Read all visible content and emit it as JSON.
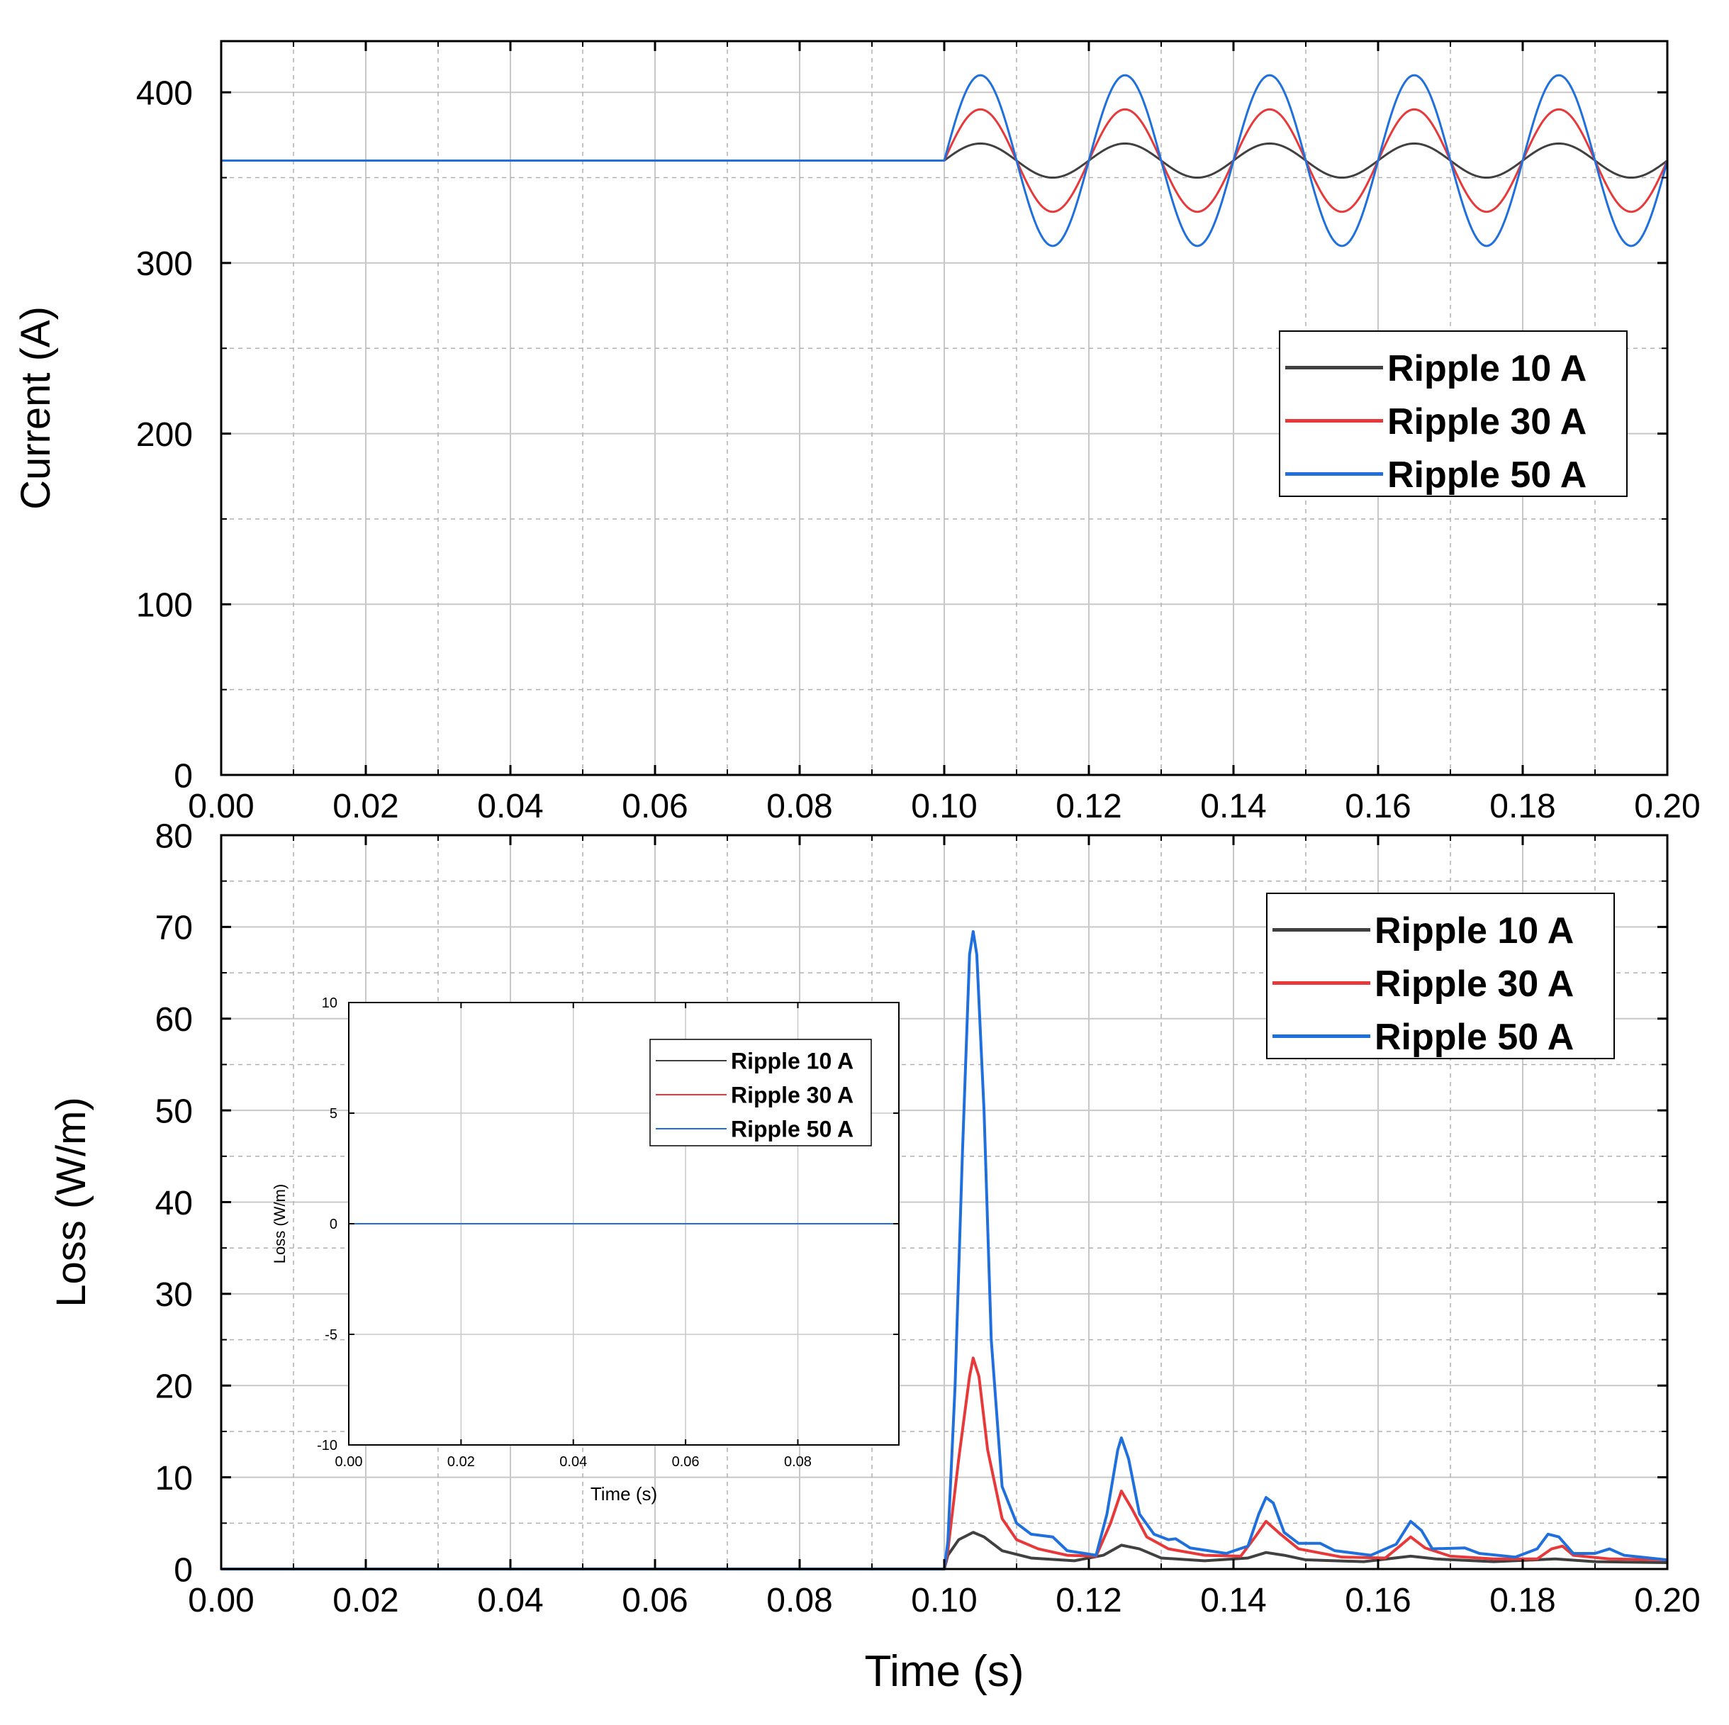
{
  "chart_data": [
    {
      "id": "current",
      "type": "line",
      "title": "",
      "xlabel": "",
      "ylabel": "Current (A)",
      "xlim": [
        0,
        0.2
      ],
      "ylim": [
        0,
        430
      ],
      "xticks": [
        "0.00",
        "0.02",
        "0.04",
        "0.06",
        "0.08",
        "0.10",
        "0.12",
        "0.14",
        "0.16",
        "0.18",
        "0.20"
      ],
      "yticks": [
        "0",
        "100",
        "200",
        "300",
        "400"
      ],
      "grid": true,
      "legend_position": "right",
      "description": "Constant 360 A until t = 0.10 s, then sinusoidal ripple at 50 Hz around 360 A",
      "series": [
        {
          "name": "Ripple 10 A",
          "color": "#404040",
          "dc": 360,
          "amplitude": 10,
          "start": 0.1,
          "frequency": 50
        },
        {
          "name": "Ripple 30 A",
          "color": "#e8393a",
          "dc": 360,
          "amplitude": 30,
          "start": 0.1,
          "frequency": 50
        },
        {
          "name": "Ripple 50 A",
          "color": "#1f6fdc",
          "dc": 360,
          "amplitude": 50,
          "start": 0.1,
          "frequency": 50
        }
      ]
    },
    {
      "id": "loss",
      "type": "line",
      "title": "",
      "xlabel": "Time (s)",
      "ylabel": "Loss (W/m)",
      "xlim": [
        0,
        0.2
      ],
      "ylim": [
        0,
        80
      ],
      "xticks": [
        "0.00",
        "0.02",
        "0.04",
        "0.06",
        "0.08",
        "0.10",
        "0.12",
        "0.14",
        "0.16",
        "0.18",
        "0.20"
      ],
      "yticks": [
        "0",
        "10",
        "20",
        "30",
        "40",
        "50",
        "60",
        "70",
        "80"
      ],
      "grid": true,
      "legend_position": "top-right",
      "series": [
        {
          "name": "Ripple 10 A",
          "color": "#404040",
          "points": [
            [
              0,
              0
            ],
            [
              0.1,
              0
            ],
            [
              0.1005,
              1.5
            ],
            [
              0.102,
              3.2
            ],
            [
              0.104,
              4.0
            ],
            [
              0.1055,
              3.5
            ],
            [
              0.108,
              2.0
            ],
            [
              0.112,
              1.2
            ],
            [
              0.118,
              0.9
            ],
            [
              0.122,
              1.5
            ],
            [
              0.1245,
              2.6
            ],
            [
              0.127,
              2.2
            ],
            [
              0.13,
              1.2
            ],
            [
              0.136,
              0.9
            ],
            [
              0.142,
              1.2
            ],
            [
              0.1445,
              1.8
            ],
            [
              0.147,
              1.5
            ],
            [
              0.15,
              1.0
            ],
            [
              0.158,
              0.8
            ],
            [
              0.1645,
              1.4
            ],
            [
              0.168,
              1.1
            ],
            [
              0.176,
              0.8
            ],
            [
              0.1845,
              1.1
            ],
            [
              0.19,
              0.8
            ],
            [
              0.2,
              0.7
            ]
          ]
        },
        {
          "name": "Ripple 30 A",
          "color": "#e8393a",
          "points": [
            [
              0,
              0
            ],
            [
              0.1,
              0
            ],
            [
              0.1005,
              2
            ],
            [
              0.102,
              12
            ],
            [
              0.1035,
              21
            ],
            [
              0.104,
              23
            ],
            [
              0.1048,
              21
            ],
            [
              0.106,
              13
            ],
            [
              0.108,
              5.5
            ],
            [
              0.11,
              3.2
            ],
            [
              0.113,
              2.2
            ],
            [
              0.117,
              1.5
            ],
            [
              0.121,
              1.4
            ],
            [
              0.123,
              5
            ],
            [
              0.1245,
              8.5
            ],
            [
              0.126,
              6.5
            ],
            [
              0.128,
              3.5
            ],
            [
              0.131,
              2.2
            ],
            [
              0.136,
              1.5
            ],
            [
              0.141,
              1.4
            ],
            [
              0.143,
              3.5
            ],
            [
              0.1445,
              5.2
            ],
            [
              0.1465,
              3.8
            ],
            [
              0.149,
              2.2
            ],
            [
              0.155,
              1.3
            ],
            [
              0.161,
              1.2
            ],
            [
              0.163,
              2.5
            ],
            [
              0.1645,
              3.5
            ],
            [
              0.1665,
              2.3
            ],
            [
              0.17,
              1.4
            ],
            [
              0.176,
              1.1
            ],
            [
              0.182,
              1.1
            ],
            [
              0.184,
              2.2
            ],
            [
              0.1855,
              2.5
            ],
            [
              0.187,
              1.5
            ],
            [
              0.192,
              1.1
            ],
            [
              0.2,
              1.0
            ]
          ]
        },
        {
          "name": "Ripple 50 A",
          "color": "#1f6fdc",
          "points": [
            [
              0,
              0
            ],
            [
              0.1,
              0
            ],
            [
              0.1005,
              3
            ],
            [
              0.1015,
              20
            ],
            [
              0.1025,
              45
            ],
            [
              0.1035,
              67
            ],
            [
              0.104,
              69.5
            ],
            [
              0.1045,
              67
            ],
            [
              0.1055,
              50
            ],
            [
              0.1065,
              25
            ],
            [
              0.108,
              9
            ],
            [
              0.11,
              5
            ],
            [
              0.112,
              3.8
            ],
            [
              0.115,
              3.5
            ],
            [
              0.117,
              2
            ],
            [
              0.121,
              1.5
            ],
            [
              0.1225,
              6
            ],
            [
              0.124,
              13
            ],
            [
              0.1245,
              14.3
            ],
            [
              0.1255,
              12
            ],
            [
              0.127,
              6
            ],
            [
              0.129,
              3.8
            ],
            [
              0.131,
              3.2
            ],
            [
              0.132,
              3.3
            ],
            [
              0.134,
              2.3
            ],
            [
              0.139,
              1.7
            ],
            [
              0.142,
              2.5
            ],
            [
              0.1435,
              6
            ],
            [
              0.1445,
              7.8
            ],
            [
              0.1455,
              7.2
            ],
            [
              0.147,
              4
            ],
            [
              0.149,
              2.8
            ],
            [
              0.152,
              2.8
            ],
            [
              0.154,
              2
            ],
            [
              0.159,
              1.5
            ],
            [
              0.1625,
              2.7
            ],
            [
              0.1645,
              5.2
            ],
            [
              0.166,
              4.2
            ],
            [
              0.1675,
              2.2
            ],
            [
              0.172,
              2.3
            ],
            [
              0.174,
              1.7
            ],
            [
              0.179,
              1.3
            ],
            [
              0.182,
              2.2
            ],
            [
              0.1835,
              3.8
            ],
            [
              0.185,
              3.5
            ],
            [
              0.187,
              1.7
            ],
            [
              0.19,
              1.7
            ],
            [
              0.192,
              2.2
            ],
            [
              0.194,
              1.5
            ],
            [
              0.2,
              1.0
            ]
          ]
        }
      ]
    },
    {
      "id": "loss-inset",
      "type": "line",
      "title": "",
      "xlabel": "Time (s)",
      "ylabel": "Loss (W/m)",
      "xlim": [
        0,
        0.098
      ],
      "ylim": [
        -10,
        10
      ],
      "xticks": [
        "0.00",
        "0.02",
        "0.04",
        "0.06",
        "0.08"
      ],
      "yticks": [
        "-10",
        "-5",
        "0",
        "5",
        "10"
      ],
      "grid": true,
      "legend_position": "top-right",
      "series": [
        {
          "name": "Ripple 10 A",
          "color": "#404040",
          "points": [
            [
              0,
              0
            ],
            [
              0.098,
              0
            ]
          ]
        },
        {
          "name": "Ripple 30 A",
          "color": "#e8393a",
          "points": [
            [
              0,
              0
            ],
            [
              0.098,
              0
            ]
          ]
        },
        {
          "name": "Ripple 50 A",
          "color": "#1f6fdc",
          "points": [
            [
              0,
              0
            ],
            [
              0.098,
              0
            ]
          ]
        }
      ]
    }
  ]
}
